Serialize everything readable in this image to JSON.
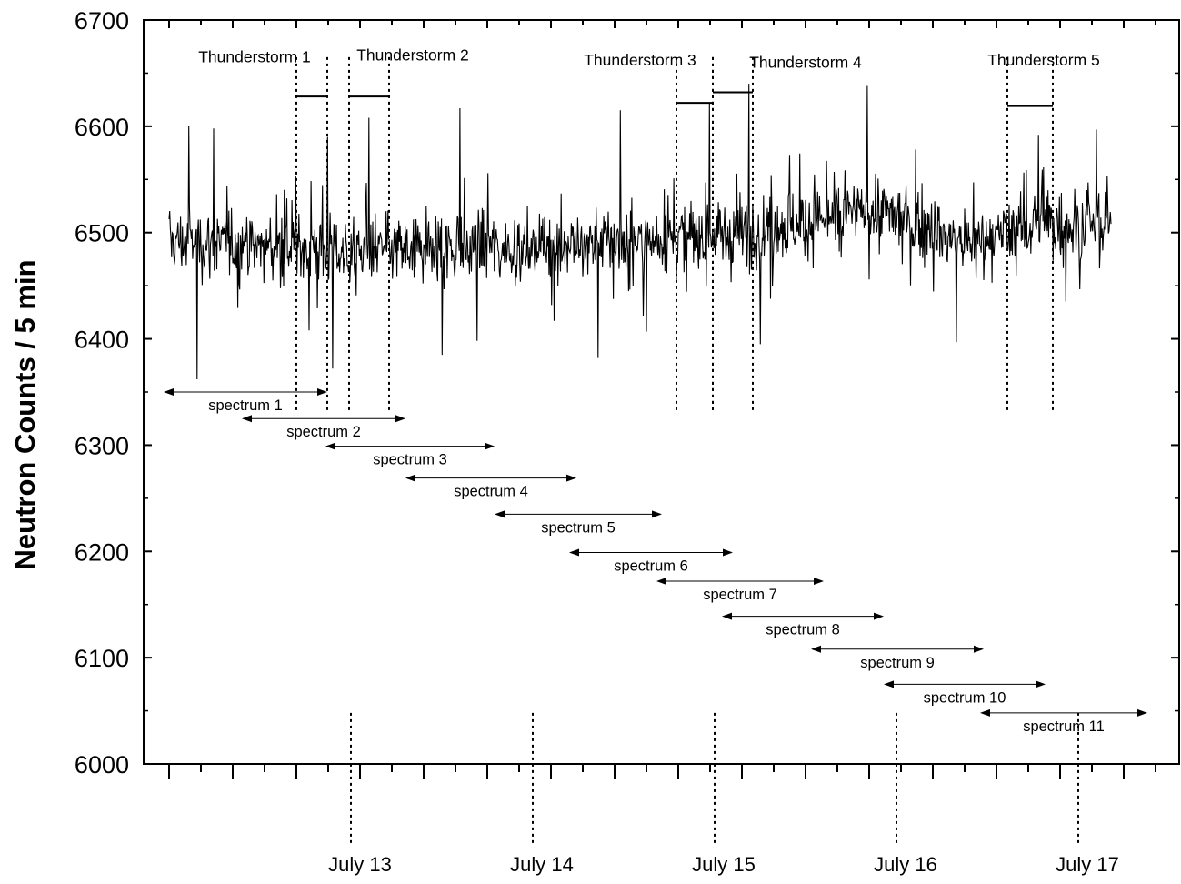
{
  "chart_data": {
    "type": "line",
    "ylabel": "Neutron Counts / 5 min",
    "ylim": [
      6000,
      6700
    ],
    "yticks": [
      6000,
      6100,
      6200,
      6300,
      6400,
      6500,
      6600,
      6700
    ],
    "x_unit_note": "days",
    "xlim": [
      0,
      5.49
    ],
    "x_minor_tick_step": 0.175,
    "grid": false,
    "date_labels": [
      {
        "label": "July 13",
        "x": 1.0
      },
      {
        "label": "July 14",
        "x": 2.0
      },
      {
        "label": "July 15",
        "x": 3.0
      },
      {
        "label": "July 16",
        "x": 4.0
      },
      {
        "label": "July 17",
        "x": 5.0
      }
    ],
    "series": [
      {
        "name": "",
        "x_start": 0,
        "x_end": 5.18,
        "baseline": [
          {
            "x": 0.0,
            "y": 6492
          },
          {
            "x": 1.0,
            "y": 6482
          },
          {
            "x": 2.0,
            "y": 6487
          },
          {
            "x": 3.0,
            "y": 6497
          },
          {
            "x": 3.6,
            "y": 6512
          },
          {
            "x": 3.9,
            "y": 6522
          },
          {
            "x": 4.4,
            "y": 6488
          },
          {
            "x": 4.8,
            "y": 6508
          },
          {
            "x": 5.18,
            "y": 6505
          }
        ],
        "spikes": [
          {
            "x": 0.11,
            "y": 6600
          },
          {
            "x": 0.155,
            "y": 6362
          },
          {
            "x": 0.245,
            "y": 6598
          },
          {
            "x": 0.77,
            "y": 6408
          },
          {
            "x": 0.87,
            "y": 6590
          },
          {
            "x": 0.9,
            "y": 6372
          },
          {
            "x": 1.1,
            "y": 6608
          },
          {
            "x": 1.5,
            "y": 6385
          },
          {
            "x": 1.6,
            "y": 6617
          },
          {
            "x": 2.36,
            "y": 6382
          },
          {
            "x": 2.48,
            "y": 6615
          },
          {
            "x": 2.97,
            "y": 6622
          },
          {
            "x": 3.19,
            "y": 6640
          },
          {
            "x": 3.25,
            "y": 6395
          },
          {
            "x": 3.84,
            "y": 6638
          },
          {
            "x": 4.33,
            "y": 6397
          },
          {
            "x": 4.78,
            "y": 6592
          },
          {
            "x": 5.1,
            "y": 6597
          }
        ]
      }
    ],
    "thunderstorms": [
      {
        "label": "Thunderstorm 1",
        "x_start": 0.7,
        "x_end": 0.87,
        "label_x": 0.47,
        "label_y": 6660,
        "bar_y": 6628
      },
      {
        "label": "Thunderstorm 2",
        "x_start": 0.99,
        "x_end": 1.21,
        "label_x": 1.34,
        "label_y": 6662,
        "bar_y": 6628
      },
      {
        "label": "Thunderstorm 3",
        "x_start": 2.79,
        "x_end": 2.99,
        "label_x": 2.59,
        "label_y": 6657,
        "bar_y": 6622
      },
      {
        "label": "Thunderstorm 4",
        "x_start": 2.99,
        "x_end": 3.21,
        "label_x": 3.5,
        "label_y": 6655,
        "bar_y": 6632
      },
      {
        "label": "Thunderstorm 5",
        "x_start": 4.61,
        "x_end": 4.86,
        "label_x": 4.81,
        "label_y": 6657,
        "bar_y": 6619
      }
    ],
    "spectra": [
      {
        "label": "spectrum 1",
        "x_start": -0.03,
        "x_end": 0.87,
        "y": 6350
      },
      {
        "label": "spectrum 2",
        "x_start": 0.4,
        "x_end": 1.3,
        "y": 6325
      },
      {
        "label": "spectrum 3",
        "x_start": 0.86,
        "x_end": 1.79,
        "y": 6299
      },
      {
        "label": "spectrum 4",
        "x_start": 1.3,
        "x_end": 2.24,
        "y": 6269
      },
      {
        "label": "spectrum 5",
        "x_start": 1.79,
        "x_end": 2.71,
        "y": 6235
      },
      {
        "label": "spectrum 6",
        "x_start": 2.2,
        "x_end": 3.1,
        "y": 6199
      },
      {
        "label": "spectrum 7",
        "x_start": 2.68,
        "x_end": 3.6,
        "y": 6172
      },
      {
        "label": "spectrum 8",
        "x_start": 3.04,
        "x_end": 3.93,
        "y": 6139
      },
      {
        "label": "spectrum 9",
        "x_start": 3.53,
        "x_end": 4.48,
        "y": 6108
      },
      {
        "label": "spectrum 10",
        "x_start": 3.93,
        "x_end": 4.82,
        "y": 6075
      },
      {
        "label": "spectrum 11",
        "x_start": 4.46,
        "x_end": 5.38,
        "y": 6048
      }
    ],
    "colors": {
      "line": "#000000",
      "background": "#ffffff",
      "frame": "#000000"
    }
  }
}
